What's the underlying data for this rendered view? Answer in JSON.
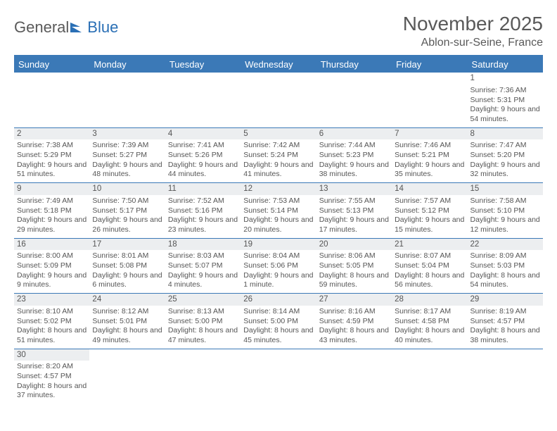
{
  "logo": {
    "text_left": "General",
    "text_right": "Blue"
  },
  "title": {
    "month_year": "November 2025",
    "location": "Ablon-sur-Seine, France"
  },
  "colors": {
    "header_bg": "#3b79b7",
    "header_text": "#ffffff",
    "daynum_bg": "#eceef0",
    "body_text": "#555555",
    "rule": "#3b79b7"
  },
  "day_headers": [
    "Sunday",
    "Monday",
    "Tuesday",
    "Wednesday",
    "Thursday",
    "Friday",
    "Saturday"
  ],
  "weeks": [
    [
      {
        "n": "",
        "sr": "",
        "ss": "",
        "dl": ""
      },
      {
        "n": "",
        "sr": "",
        "ss": "",
        "dl": ""
      },
      {
        "n": "",
        "sr": "",
        "ss": "",
        "dl": ""
      },
      {
        "n": "",
        "sr": "",
        "ss": "",
        "dl": ""
      },
      {
        "n": "",
        "sr": "",
        "ss": "",
        "dl": ""
      },
      {
        "n": "",
        "sr": "",
        "ss": "",
        "dl": ""
      },
      {
        "n": "1",
        "sr": "Sunrise: 7:36 AM",
        "ss": "Sunset: 5:31 PM",
        "dl": "Daylight: 9 hours and 54 minutes."
      }
    ],
    [
      {
        "n": "2",
        "sr": "Sunrise: 7:38 AM",
        "ss": "Sunset: 5:29 PM",
        "dl": "Daylight: 9 hours and 51 minutes."
      },
      {
        "n": "3",
        "sr": "Sunrise: 7:39 AM",
        "ss": "Sunset: 5:27 PM",
        "dl": "Daylight: 9 hours and 48 minutes."
      },
      {
        "n": "4",
        "sr": "Sunrise: 7:41 AM",
        "ss": "Sunset: 5:26 PM",
        "dl": "Daylight: 9 hours and 44 minutes."
      },
      {
        "n": "5",
        "sr": "Sunrise: 7:42 AM",
        "ss": "Sunset: 5:24 PM",
        "dl": "Daylight: 9 hours and 41 minutes."
      },
      {
        "n": "6",
        "sr": "Sunrise: 7:44 AM",
        "ss": "Sunset: 5:23 PM",
        "dl": "Daylight: 9 hours and 38 minutes."
      },
      {
        "n": "7",
        "sr": "Sunrise: 7:46 AM",
        "ss": "Sunset: 5:21 PM",
        "dl": "Daylight: 9 hours and 35 minutes."
      },
      {
        "n": "8",
        "sr": "Sunrise: 7:47 AM",
        "ss": "Sunset: 5:20 PM",
        "dl": "Daylight: 9 hours and 32 minutes."
      }
    ],
    [
      {
        "n": "9",
        "sr": "Sunrise: 7:49 AM",
        "ss": "Sunset: 5:18 PM",
        "dl": "Daylight: 9 hours and 29 minutes."
      },
      {
        "n": "10",
        "sr": "Sunrise: 7:50 AM",
        "ss": "Sunset: 5:17 PM",
        "dl": "Daylight: 9 hours and 26 minutes."
      },
      {
        "n": "11",
        "sr": "Sunrise: 7:52 AM",
        "ss": "Sunset: 5:16 PM",
        "dl": "Daylight: 9 hours and 23 minutes."
      },
      {
        "n": "12",
        "sr": "Sunrise: 7:53 AM",
        "ss": "Sunset: 5:14 PM",
        "dl": "Daylight: 9 hours and 20 minutes."
      },
      {
        "n": "13",
        "sr": "Sunrise: 7:55 AM",
        "ss": "Sunset: 5:13 PM",
        "dl": "Daylight: 9 hours and 17 minutes."
      },
      {
        "n": "14",
        "sr": "Sunrise: 7:57 AM",
        "ss": "Sunset: 5:12 PM",
        "dl": "Daylight: 9 hours and 15 minutes."
      },
      {
        "n": "15",
        "sr": "Sunrise: 7:58 AM",
        "ss": "Sunset: 5:10 PM",
        "dl": "Daylight: 9 hours and 12 minutes."
      }
    ],
    [
      {
        "n": "16",
        "sr": "Sunrise: 8:00 AM",
        "ss": "Sunset: 5:09 PM",
        "dl": "Daylight: 9 hours and 9 minutes."
      },
      {
        "n": "17",
        "sr": "Sunrise: 8:01 AM",
        "ss": "Sunset: 5:08 PM",
        "dl": "Daylight: 9 hours and 6 minutes."
      },
      {
        "n": "18",
        "sr": "Sunrise: 8:03 AM",
        "ss": "Sunset: 5:07 PM",
        "dl": "Daylight: 9 hours and 4 minutes."
      },
      {
        "n": "19",
        "sr": "Sunrise: 8:04 AM",
        "ss": "Sunset: 5:06 PM",
        "dl": "Daylight: 9 hours and 1 minute."
      },
      {
        "n": "20",
        "sr": "Sunrise: 8:06 AM",
        "ss": "Sunset: 5:05 PM",
        "dl": "Daylight: 8 hours and 59 minutes."
      },
      {
        "n": "21",
        "sr": "Sunrise: 8:07 AM",
        "ss": "Sunset: 5:04 PM",
        "dl": "Daylight: 8 hours and 56 minutes."
      },
      {
        "n": "22",
        "sr": "Sunrise: 8:09 AM",
        "ss": "Sunset: 5:03 PM",
        "dl": "Daylight: 8 hours and 54 minutes."
      }
    ],
    [
      {
        "n": "23",
        "sr": "Sunrise: 8:10 AM",
        "ss": "Sunset: 5:02 PM",
        "dl": "Daylight: 8 hours and 51 minutes."
      },
      {
        "n": "24",
        "sr": "Sunrise: 8:12 AM",
        "ss": "Sunset: 5:01 PM",
        "dl": "Daylight: 8 hours and 49 minutes."
      },
      {
        "n": "25",
        "sr": "Sunrise: 8:13 AM",
        "ss": "Sunset: 5:00 PM",
        "dl": "Daylight: 8 hours and 47 minutes."
      },
      {
        "n": "26",
        "sr": "Sunrise: 8:14 AM",
        "ss": "Sunset: 5:00 PM",
        "dl": "Daylight: 8 hours and 45 minutes."
      },
      {
        "n": "27",
        "sr": "Sunrise: 8:16 AM",
        "ss": "Sunset: 4:59 PM",
        "dl": "Daylight: 8 hours and 43 minutes."
      },
      {
        "n": "28",
        "sr": "Sunrise: 8:17 AM",
        "ss": "Sunset: 4:58 PM",
        "dl": "Daylight: 8 hours and 40 minutes."
      },
      {
        "n": "29",
        "sr": "Sunrise: 8:19 AM",
        "ss": "Sunset: 4:57 PM",
        "dl": "Daylight: 8 hours and 38 minutes."
      }
    ],
    [
      {
        "n": "30",
        "sr": "Sunrise: 8:20 AM",
        "ss": "Sunset: 4:57 PM",
        "dl": "Daylight: 8 hours and 37 minutes."
      },
      {
        "n": "",
        "sr": "",
        "ss": "",
        "dl": ""
      },
      {
        "n": "",
        "sr": "",
        "ss": "",
        "dl": ""
      },
      {
        "n": "",
        "sr": "",
        "ss": "",
        "dl": ""
      },
      {
        "n": "",
        "sr": "",
        "ss": "",
        "dl": ""
      },
      {
        "n": "",
        "sr": "",
        "ss": "",
        "dl": ""
      },
      {
        "n": "",
        "sr": "",
        "ss": "",
        "dl": ""
      }
    ]
  ]
}
